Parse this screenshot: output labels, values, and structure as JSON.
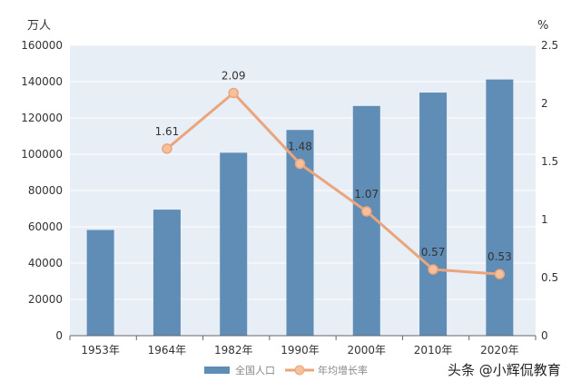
{
  "chart_data": {
    "type": "bar+line",
    "categories": [
      "1953年",
      "1964年",
      "1982年",
      "1990年",
      "2000年",
      "2010年",
      "2020年"
    ],
    "series": [
      {
        "name": "全国人口",
        "type": "bar",
        "axis": "left",
        "values": [
          58260,
          69458,
          100818,
          113368,
          126583,
          133972,
          141178
        ],
        "color": "#5f8db5"
      },
      {
        "name": "年均增长率",
        "type": "line",
        "axis": "right",
        "values": [
          null,
          1.61,
          2.09,
          1.48,
          1.07,
          0.57,
          0.53
        ],
        "labels": [
          "",
          "1.61",
          "2.09",
          "1.48",
          "1.07",
          "0.57",
          "0.53"
        ],
        "color": "#eba57c"
      }
    ],
    "left_axis": {
      "unit": "万人",
      "ylim": [
        0,
        160000
      ],
      "ticks": [
        "0",
        "20000",
        "40000",
        "60000",
        "80000",
        "100000",
        "120000",
        "140000",
        "160000"
      ]
    },
    "right_axis": {
      "unit": "%",
      "ylim": [
        0,
        2.5
      ],
      "ticks": [
        "0",
        "0.5",
        "1",
        "1.5",
        "2",
        "2.5"
      ]
    },
    "grid": true,
    "legend": "bottom"
  },
  "watermark": "头条 @小辉侃教育"
}
